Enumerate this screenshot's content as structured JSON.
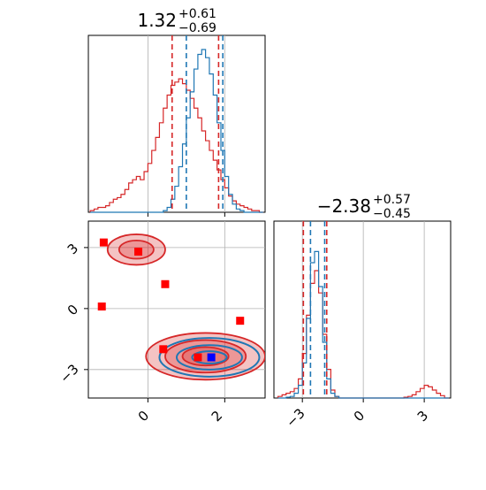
{
  "colors": {
    "blue": "#1f77b4",
    "red": "#d62728",
    "marker_red": "#ff0000",
    "marker_blue": "#0000ff",
    "grid": "#b0b0b0",
    "axis": "#000000"
  },
  "chart_data": {
    "type": "corner",
    "parameters": [
      "param_0",
      "param_1"
    ],
    "grid": true,
    "titles": [
      {
        "median": "1.32",
        "plus": "+0.61",
        "minus": "−0.69"
      },
      {
        "median": "−2.38",
        "plus": "+0.57",
        "minus": "−0.45"
      }
    ],
    "tick_labels": {
      "scatter_y": [
        "3",
        "0",
        "−3"
      ],
      "scatter_x": [
        "0",
        "2"
      ],
      "hist2_x": [
        "−3",
        "0",
        "3"
      ]
    },
    "ranges": {
      "param_0": [
        -1.55,
        3.05
      ],
      "param_1": [
        -4.4,
        4.3
      ]
    },
    "hist_1": {
      "bins": [
        -1.5,
        -1.4,
        -1.3,
        -1.2,
        -1.1,
        -1.0,
        -0.9,
        -0.8,
        -0.7,
        -0.6,
        -0.5,
        -0.4,
        -0.3,
        -0.2,
        -0.1,
        0.0,
        0.1,
        0.2,
        0.3,
        0.4,
        0.5,
        0.6,
        0.7,
        0.8,
        0.9,
        1.0,
        1.1,
        1.2,
        1.3,
        1.4,
        1.5,
        1.6,
        1.7,
        1.8,
        1.9,
        2.0,
        2.1,
        2.2,
        2.3,
        2.4,
        2.5,
        2.6,
        2.7,
        2.8,
        2.9
      ],
      "blue_density": [
        0,
        0,
        0,
        0,
        0,
        0,
        0,
        0,
        0,
        0,
        0,
        0,
        0,
        0,
        0,
        0,
        0,
        0,
        0,
        0.01,
        0.03,
        0.08,
        0.16,
        0.28,
        0.42,
        0.58,
        0.74,
        0.88,
        0.97,
        1.0,
        0.95,
        0.85,
        0.72,
        0.55,
        0.38,
        0.22,
        0.11,
        0.05,
        0.02,
        0.01,
        0,
        0,
        0,
        0,
        0
      ],
      "red_density": [
        0.01,
        0.02,
        0.03,
        0.03,
        0.04,
        0.06,
        0.08,
        0.09,
        0.11,
        0.14,
        0.18,
        0.2,
        0.22,
        0.2,
        0.25,
        0.3,
        0.38,
        0.46,
        0.55,
        0.64,
        0.72,
        0.78,
        0.8,
        0.82,
        0.79,
        0.75,
        0.7,
        0.64,
        0.58,
        0.5,
        0.44,
        0.38,
        0.32,
        0.26,
        0.2,
        0.15,
        0.1,
        0.07,
        0.05,
        0.04,
        0.03,
        0.02,
        0.01,
        0.01,
        0
      ],
      "blue_quantiles": [
        1.0,
        1.95
      ],
      "red_quantiles": [
        0.63,
        1.84
      ]
    },
    "hist_2": {
      "bins": [
        -4.2,
        -4.0,
        -3.8,
        -3.6,
        -3.4,
        -3.2,
        -3.0,
        -2.8,
        -2.6,
        -2.4,
        -2.2,
        -2.0,
        -1.8,
        -1.6,
        -1.4,
        -1.2,
        -1.0,
        -0.8,
        -0.6,
        -0.4,
        -0.2,
        0.0,
        0.2,
        0.4,
        0.6,
        0.8,
        1.0,
        1.2,
        1.4,
        1.6,
        1.8,
        2.0,
        2.2,
        2.4,
        2.6,
        2.8,
        3.0,
        3.2,
        3.4,
        3.6,
        3.8,
        4.0
      ],
      "blue_density": [
        0,
        0,
        0.005,
        0.01,
        0.03,
        0.08,
        0.22,
        0.5,
        0.85,
        0.92,
        0.7,
        0.35,
        0.12,
        0.03,
        0.01,
        0,
        0,
        0,
        0,
        0,
        0,
        0,
        0,
        0,
        0,
        0,
        0,
        0,
        0,
        0,
        0,
        0,
        0,
        0,
        0,
        0,
        0,
        0,
        0,
        0,
        0,
        0
      ],
      "red_density": [
        0.01,
        0.02,
        0.03,
        0.04,
        0.06,
        0.12,
        0.28,
        0.52,
        0.72,
        0.8,
        0.66,
        0.4,
        0.18,
        0.05,
        0.01,
        0,
        0,
        0,
        0,
        0,
        0,
        0,
        0,
        0,
        0,
        0,
        0,
        0,
        0,
        0,
        0,
        0.005,
        0.01,
        0.02,
        0.04,
        0.06,
        0.08,
        0.07,
        0.05,
        0.03,
        0.015,
        0
      ],
      "blue_quantiles": [
        -2.6,
        -1.9
      ],
      "red_quantiles": [
        -2.95,
        -1.8
      ]
    },
    "scatter": {
      "red_contours": [
        {
          "cx": -0.3,
          "cy": 2.9,
          "rx": 0.75,
          "ry": 0.75
        },
        {
          "cx": -0.3,
          "cy": 2.9,
          "rx": 0.45,
          "ry": 0.45
        },
        {
          "cx": 1.5,
          "cy": -2.35,
          "rx": 1.55,
          "ry": 1.15
        },
        {
          "cx": 1.5,
          "cy": -2.35,
          "rx": 1.05,
          "ry": 0.8
        },
        {
          "cx": 1.5,
          "cy": -2.35,
          "rx": 0.6,
          "ry": 0.45
        }
      ],
      "blue_contours": [
        {
          "cx": 1.6,
          "cy": -2.4,
          "rx": 1.3,
          "ry": 0.95
        },
        {
          "cx": 1.6,
          "cy": -2.4,
          "rx": 0.85,
          "ry": 0.6
        },
        {
          "cx": 1.6,
          "cy": -2.4,
          "rx": 0.45,
          "ry": 0.3
        }
      ],
      "red_markers": [
        [
          -1.15,
          3.25
        ],
        [
          -0.25,
          2.8
        ],
        [
          0.45,
          1.2
        ],
        [
          -1.2,
          0.1
        ],
        [
          2.4,
          -0.6
        ],
        [
          0.4,
          -2.0
        ],
        [
          1.3,
          -2.4
        ]
      ],
      "blue_markers": [
        [
          1.65,
          -2.4
        ]
      ]
    }
  }
}
